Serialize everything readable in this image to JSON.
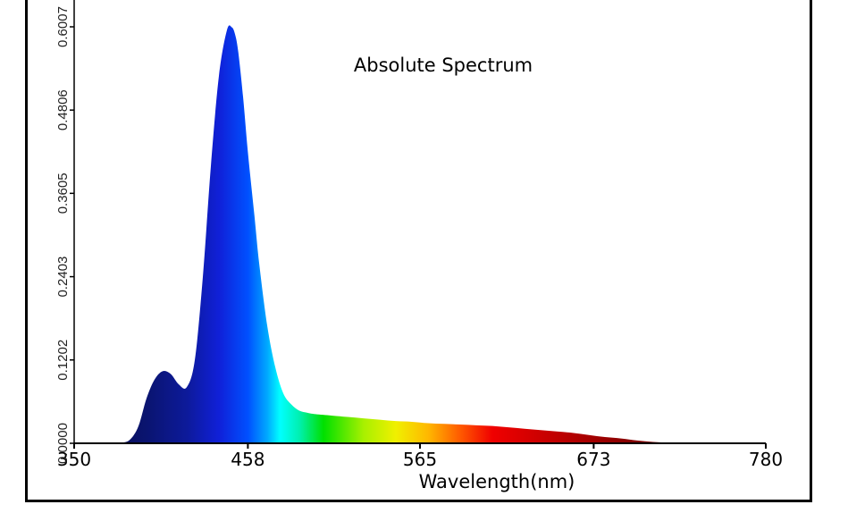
{
  "chart_data": {
    "type": "area",
    "title": "Absolute Spectrum",
    "xlabel": "Wavelength(nm)",
    "ylabel": "",
    "xlim": [
      350,
      780
    ],
    "ylim": [
      0,
      0.6007
    ],
    "x_ticks": [
      "350",
      "458",
      "565",
      "673",
      "780"
    ],
    "y_ticks": [
      "0.0000",
      "0.1202",
      "0.2403",
      "0.3605",
      "0.4806",
      "0.6007"
    ],
    "grid": false,
    "fill": "wavelength-rainbow",
    "series": [
      {
        "x": [
          350,
          370,
          380,
          385,
          390,
          395,
          400,
          405,
          410,
          415,
          420,
          425,
          430,
          435,
          440,
          445,
          448,
          450,
          452,
          455,
          458,
          462,
          465,
          470,
          475,
          480,
          485,
          490,
          495,
          500,
          510,
          520,
          530,
          540,
          550,
          560,
          570,
          580,
          590,
          600,
          610,
          620,
          630,
          640,
          650,
          660,
          670,
          680,
          690,
          700,
          710,
          720,
          730,
          740,
          750,
          760,
          770,
          780
        ],
        "y": [
          0,
          0,
          0.001,
          0.006,
          0.025,
          0.065,
          0.092,
          0.104,
          0.1,
          0.085,
          0.081,
          0.12,
          0.24,
          0.4,
          0.53,
          0.596,
          0.6,
          0.59,
          0.565,
          0.5,
          0.42,
          0.33,
          0.26,
          0.17,
          0.11,
          0.072,
          0.056,
          0.047,
          0.044,
          0.042,
          0.04,
          0.038,
          0.036,
          0.034,
          0.032,
          0.031,
          0.029,
          0.028,
          0.027,
          0.026,
          0.025,
          0.023,
          0.021,
          0.019,
          0.017,
          0.015,
          0.012,
          0.009,
          0.007,
          0.004,
          0.002,
          0.001,
          0.0005,
          0,
          0,
          0,
          0,
          0
        ]
      }
    ]
  }
}
